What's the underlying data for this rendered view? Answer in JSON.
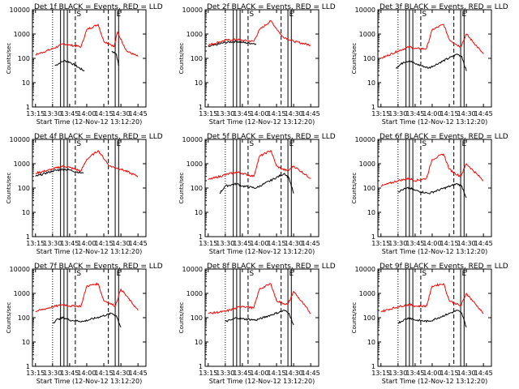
{
  "panel_title_tpl": [
    "Det ",
    "f BLACK = Events, RED = LLD"
  ],
  "xlabel": "Start Time (12-Nov-12 13:12:20)",
  "ylabel": "Counts/sec",
  "xtick_labels": [
    "13:15",
    "13:30",
    "13:45",
    "14:00",
    "14:15",
    "14:30",
    "14:45"
  ],
  "ytick_labels": [
    "1",
    "10",
    "100",
    "1000",
    "10000"
  ],
  "marker_letters": [
    "S",
    "E"
  ],
  "colors": {
    "events": "#000000",
    "lld": "#ff0000"
  },
  "chart_data": [
    {
      "type": "line",
      "detector": "1",
      "title": "Det 1f BLACK = Events, RED = LLD",
      "xlim": [
        "13:12:20",
        "14:52:00"
      ],
      "ylim": [
        1,
        10000
      ],
      "yscale": "log",
      "series": [
        {
          "name": "BLACK = Events",
          "x": [
            "13:32",
            "13:40",
            "13:45",
            "13:58",
            "14:17",
            "14:22",
            "14:26",
            "14:28"
          ],
          "y": [
            50,
            80,
            70,
            30,
            null,
            200,
            150,
            50
          ]
        },
        {
          "name": "RED = LLD",
          "x": [
            "13:15",
            "13:30",
            "13:40",
            "13:45",
            "13:55",
            "14:00",
            "14:10",
            "14:15",
            "14:20",
            "14:24",
            "14:27",
            "14:35",
            "14:45"
          ],
          "y": [
            140,
            250,
            400,
            350,
            300,
            1500,
            2500,
            500,
            400,
            300,
            1200,
            200,
            120
          ]
        }
      ]
    },
    {
      "type": "line",
      "detector": "2",
      "title": "Det 2f BLACK = Events, RED = LLD",
      "xlim": [
        "13:12:20",
        "14:52:00"
      ],
      "ylim": [
        1,
        10000
      ],
      "yscale": "log",
      "series": [
        {
          "name": "BLACK = Events",
          "x": [
            "13:15",
            "13:30",
            "13:40",
            "13:45",
            "13:57"
          ],
          "y": [
            300,
            450,
            500,
            450,
            400
          ]
        },
        {
          "name": "RED = LLD",
          "x": [
            "13:15",
            "13:30",
            "13:40",
            "13:45",
            "13:55",
            "14:00",
            "14:10",
            "14:20",
            "14:30",
            "14:45"
          ],
          "y": [
            350,
            550,
            600,
            550,
            500,
            1500,
            3500,
            800,
            500,
            350
          ]
        }
      ]
    },
    {
      "type": "line",
      "detector": "3",
      "title": "Det 3f BLACK = Events, RED = LLD",
      "xlim": [
        "13:12:20",
        "14:52:00"
      ],
      "ylim": [
        1,
        10000
      ],
      "yscale": "log",
      "series": [
        {
          "name": "BLACK = Events",
          "x": [
            "13:28",
            "13:35",
            "13:40",
            "13:45",
            "13:57",
            "14:22",
            "14:26",
            "14:30"
          ],
          "y": [
            40,
            70,
            80,
            60,
            40,
            150,
            120,
            30
          ]
        },
        {
          "name": "RED = LLD",
          "x": [
            "13:15",
            "13:30",
            "13:40",
            "13:45",
            "13:55",
            "14:00",
            "14:10",
            "14:15",
            "14:20",
            "14:25",
            "14:30",
            "14:45"
          ],
          "y": [
            100,
            200,
            300,
            250,
            250,
            1500,
            2500,
            600,
            400,
            300,
            1000,
            150
          ]
        }
      ]
    },
    {
      "type": "line",
      "detector": "4",
      "title": "Det 4f BLACK = Events, RED = LLD",
      "xlim": [
        "13:12:20",
        "14:52:00"
      ],
      "ylim": [
        1,
        10000
      ],
      "yscale": "log",
      "series": [
        {
          "name": "BLACK = Events",
          "x": [
            "13:15",
            "13:30",
            "13:40",
            "13:45",
            "13:57"
          ],
          "y": [
            300,
            500,
            600,
            550,
            400
          ]
        },
        {
          "name": "RED = LLD",
          "x": [
            "13:15",
            "13:30",
            "13:40",
            "13:45",
            "13:55",
            "14:00",
            "14:10",
            "14:20",
            "14:30",
            "14:45"
          ],
          "y": [
            400,
            600,
            800,
            700,
            500,
            1500,
            3500,
            800,
            600,
            300
          ]
        }
      ]
    },
    {
      "type": "line",
      "detector": "5",
      "title": "Det 5f BLACK = Events, RED = LLD",
      "xlim": [
        "13:12:20",
        "14:52:00"
      ],
      "ylim": [
        1,
        10000
      ],
      "yscale": "log",
      "series": [
        {
          "name": "BLACK = Events",
          "x": [
            "13:25",
            "13:30",
            "13:40",
            "13:45",
            "13:57",
            "14:22",
            "14:26",
            "14:30"
          ],
          "y": [
            60,
            120,
            150,
            120,
            100,
            400,
            250,
            60
          ]
        },
        {
          "name": "RED = LLD",
          "x": [
            "13:15",
            "13:30",
            "13:40",
            "13:45",
            "13:55",
            "14:00",
            "14:10",
            "14:15",
            "14:20",
            "14:25",
            "14:30",
            "14:45"
          ],
          "y": [
            220,
            350,
            450,
            400,
            300,
            2000,
            3500,
            800,
            600,
            500,
            800,
            250
          ]
        }
      ]
    },
    {
      "type": "line",
      "detector": "6",
      "title": "Det 6f BLACK = Events, RED = LLD",
      "xlim": [
        "13:12:20",
        "14:52:00"
      ],
      "ylim": [
        1,
        10000
      ],
      "yscale": "log",
      "series": [
        {
          "name": "BLACK = Events",
          "x": [
            "13:30",
            "13:35",
            "13:40",
            "13:45",
            "13:57",
            "14:22",
            "14:26",
            "14:30"
          ],
          "y": [
            70,
            90,
            100,
            80,
            60,
            150,
            120,
            40
          ]
        },
        {
          "name": "RED = LLD",
          "x": [
            "13:15",
            "13:30",
            "13:40",
            "13:45",
            "13:55",
            "14:00",
            "14:10",
            "14:15",
            "14:20",
            "14:25",
            "14:30",
            "14:45"
          ],
          "y": [
            120,
            200,
            250,
            200,
            250,
            1500,
            2500,
            600,
            400,
            300,
            1000,
            200
          ]
        }
      ]
    },
    {
      "type": "line",
      "detector": "7",
      "title": "Det 7f BLACK = Events, RED = LLD",
      "xlim": [
        "13:12:20",
        "14:52:00"
      ],
      "ylim": [
        1,
        10000
      ],
      "yscale": "log",
      "series": [
        {
          "name": "BLACK = Events",
          "x": [
            "13:30",
            "13:35",
            "13:40",
            "13:45",
            "13:57",
            "14:22",
            "14:26",
            "14:30"
          ],
          "y": [
            60,
            90,
            100,
            80,
            70,
            150,
            120,
            40
          ]
        },
        {
          "name": "RED = LLD",
          "x": [
            "13:15",
            "13:30",
            "13:40",
            "13:45",
            "13:55",
            "14:00",
            "14:10",
            "14:15",
            "14:20",
            "14:25",
            "14:30",
            "14:45"
          ],
          "y": [
            180,
            280,
            350,
            300,
            300,
            2000,
            2500,
            500,
            400,
            300,
            1500,
            200
          ]
        }
      ]
    },
    {
      "type": "line",
      "detector": "8",
      "title": "Det 8f BLACK = Events, RED = LLD",
      "xlim": [
        "13:12:20",
        "14:52:00"
      ],
      "ylim": [
        1,
        10000
      ],
      "yscale": "log",
      "series": [
        {
          "name": "BLACK = Events",
          "x": [
            "13:30",
            "13:35",
            "13:40",
            "13:45",
            "13:57",
            "14:22",
            "14:26",
            "14:30"
          ],
          "y": [
            70,
            80,
            100,
            90,
            80,
            200,
            150,
            50
          ]
        },
        {
          "name": "RED = LLD",
          "x": [
            "13:15",
            "13:30",
            "13:40",
            "13:45",
            "13:55",
            "14:00",
            "14:10",
            "14:15",
            "14:20",
            "14:25",
            "14:30",
            "14:45"
          ],
          "y": [
            150,
            180,
            250,
            300,
            250,
            1500,
            2500,
            500,
            400,
            350,
            1200,
            150
          ]
        }
      ]
    },
    {
      "type": "line",
      "detector": "9",
      "title": "Det 9f BLACK = Events, RED = LLD",
      "xlim": [
        "13:12:20",
        "14:52:00"
      ],
      "ylim": [
        1,
        10000
      ],
      "yscale": "log",
      "series": [
        {
          "name": "BLACK = Events",
          "x": [
            "13:30",
            "13:35",
            "13:40",
            "13:45",
            "13:57",
            "14:22",
            "14:26",
            "14:30"
          ],
          "y": [
            60,
            80,
            100,
            80,
            70,
            200,
            150,
            40
          ]
        },
        {
          "name": "RED = LLD",
          "x": [
            "13:15",
            "13:30",
            "13:40",
            "13:45",
            "13:55",
            "14:00",
            "14:10",
            "14:15",
            "14:20",
            "14:25",
            "14:30",
            "14:45"
          ],
          "y": [
            180,
            280,
            350,
            300,
            300,
            2000,
            2500,
            500,
            400,
            300,
            1000,
            150
          ]
        }
      ]
    }
  ],
  "markers": {
    "solid": [
      "13:37",
      "13:40",
      "13:43",
      "14:25",
      "14:28"
    ],
    "dashed": [
      "13:50",
      "14:19"
    ],
    "dotted": [
      "13:30"
    ],
    "letter_times": {
      "S": "13:51",
      "E": "14:26"
    }
  }
}
